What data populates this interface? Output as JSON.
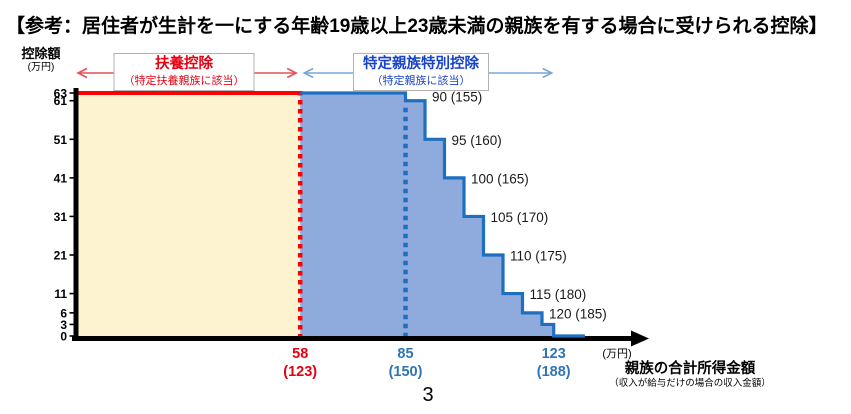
{
  "title": "【参考：居住者が生計を一にする年齢19歳以上23歳未満の親族を有する場合に受けられる控除】",
  "page_number": "3",
  "axes": {
    "y_title": "控除額",
    "y_unit": "(万円)",
    "x_unit": "(万円)",
    "x_title": "親族の合計所得金額",
    "x_subtitle": "（収入が給与だけの場合の収入金額）"
  },
  "colors": {
    "red_accent": "#e60012",
    "red_line": "#ff0000",
    "red_arrow": "#e05555",
    "blue_header": "#1843c8",
    "blue_line": "#1f6fbf",
    "blue_fill": "#8faadc",
    "blue_tick": "#2e75b6",
    "blue_arrow": "#7ba7d7",
    "yellow_fill": "#fdf3d0",
    "axis_black": "#000000"
  },
  "chart_data": {
    "type": "area",
    "title": "居住者が生計を一にする年齢19歳以上23歳未満の親族を有する場合に受けられる控除",
    "xlabel": "親族の合計所得金額",
    "xlabel_note": "（収入が給与だけの場合の収入金額）",
    "x_unit": "万円",
    "ylabel": "控除額",
    "y_unit": "万円",
    "ylim": [
      0,
      63
    ],
    "xlim": [
      0,
      140
    ],
    "grid": false,
    "steps": [
      {
        "income_from": 0,
        "income_to": 85,
        "deduction": 63
      },
      {
        "income_from": 85,
        "income_to": 90,
        "deduction": 61
      },
      {
        "income_from": 90,
        "income_to": 95,
        "deduction": 51
      },
      {
        "income_from": 95,
        "income_to": 100,
        "deduction": 41
      },
      {
        "income_from": 100,
        "income_to": 105,
        "deduction": 31
      },
      {
        "income_from": 105,
        "income_to": 110,
        "deduction": 21
      },
      {
        "income_from": 110,
        "income_to": 115,
        "deduction": 11
      },
      {
        "income_from": 115,
        "income_to": 120,
        "deduction": 6
      },
      {
        "income_from": 120,
        "income_to": 123,
        "deduction": 3
      },
      {
        "income_from": 123,
        "income_to": null,
        "deduction": 0
      }
    ],
    "y_ticks": [
      63,
      61,
      51,
      41,
      31,
      21,
      11,
      6,
      3,
      0
    ],
    "x_ticks": [
      {
        "income": 58,
        "line1": "58",
        "line2": "(123)",
        "color": "#e60012"
      },
      {
        "income": 85,
        "line1": "85",
        "line2": "(150)",
        "color": "#2e75b6"
      },
      {
        "income": 123,
        "line1": "123",
        "line2": "(188)",
        "color": "#2e75b6"
      }
    ],
    "step_edge_labels": [
      {
        "income": 90,
        "label": "90 (155)"
      },
      {
        "income": 95,
        "label": "95 (160)"
      },
      {
        "income": 100,
        "label": "100 (165)"
      },
      {
        "income": 105,
        "label": "105 (170)"
      },
      {
        "income": 110,
        "label": "110 (175)"
      },
      {
        "income": 115,
        "label": "115 (180)"
      },
      {
        "income": 120,
        "label": "120 (185)"
      }
    ],
    "regions": [
      {
        "label": "扶養控除",
        "sublabel": "（特定扶養親族に該当）",
        "income_from": 0,
        "income_to": 58,
        "fill": "#fdf3d0"
      },
      {
        "label": "特定親族特別控除",
        "sublabel": "（特定親族に該当）",
        "income_from": 58,
        "income_to": 123,
        "fill": "#8faadc"
      }
    ],
    "boundaries": {
      "red_dotted_income": 58,
      "blue_dotted_income": 85
    }
  }
}
